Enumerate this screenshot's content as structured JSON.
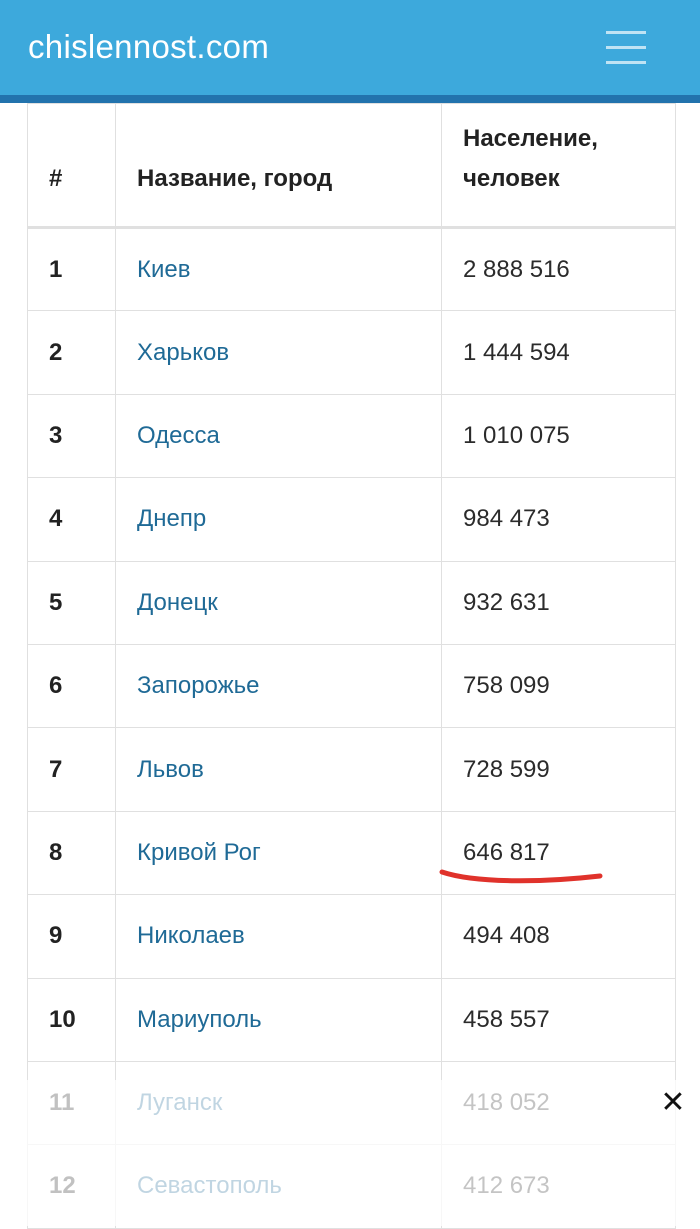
{
  "header": {
    "site_title": "chislennost.com",
    "menu_icon": "hamburger-menu-icon",
    "bar_color": "#3da9dc",
    "stripe_color": "#2273ad"
  },
  "table": {
    "headers": [
      "#",
      "Название, город",
      "Население, человек"
    ],
    "rows": [
      {
        "rank": "1",
        "city": "Киев",
        "population": "2 888 516"
      },
      {
        "rank": "2",
        "city": "Харьков",
        "population": "1 444 594"
      },
      {
        "rank": "3",
        "city": "Одесса",
        "population": "1 010 075"
      },
      {
        "rank": "4",
        "city": "Днепр",
        "population": "984 473"
      },
      {
        "rank": "5",
        "city": "Донецк",
        "population": "932 631"
      },
      {
        "rank": "6",
        "city": "Запорожье",
        "population": "758 099"
      },
      {
        "rank": "7",
        "city": "Львов",
        "population": "728 599"
      },
      {
        "rank": "8",
        "city": "Кривой Рог",
        "population": "646 817"
      },
      {
        "rank": "9",
        "city": "Николаев",
        "population": "494 408"
      },
      {
        "rank": "10",
        "city": "Мариуполь",
        "population": "458 557"
      },
      {
        "rank": "11",
        "city": "Луганск",
        "population": "418 052"
      },
      {
        "rank": "12",
        "city": "Севастополь",
        "population": "412 673"
      }
    ],
    "link_color": "#1f6a96",
    "highlighted_row_rank": "8",
    "highlight_color": "#e0322b"
  },
  "ad_overlay": {
    "close_label": "✕"
  }
}
